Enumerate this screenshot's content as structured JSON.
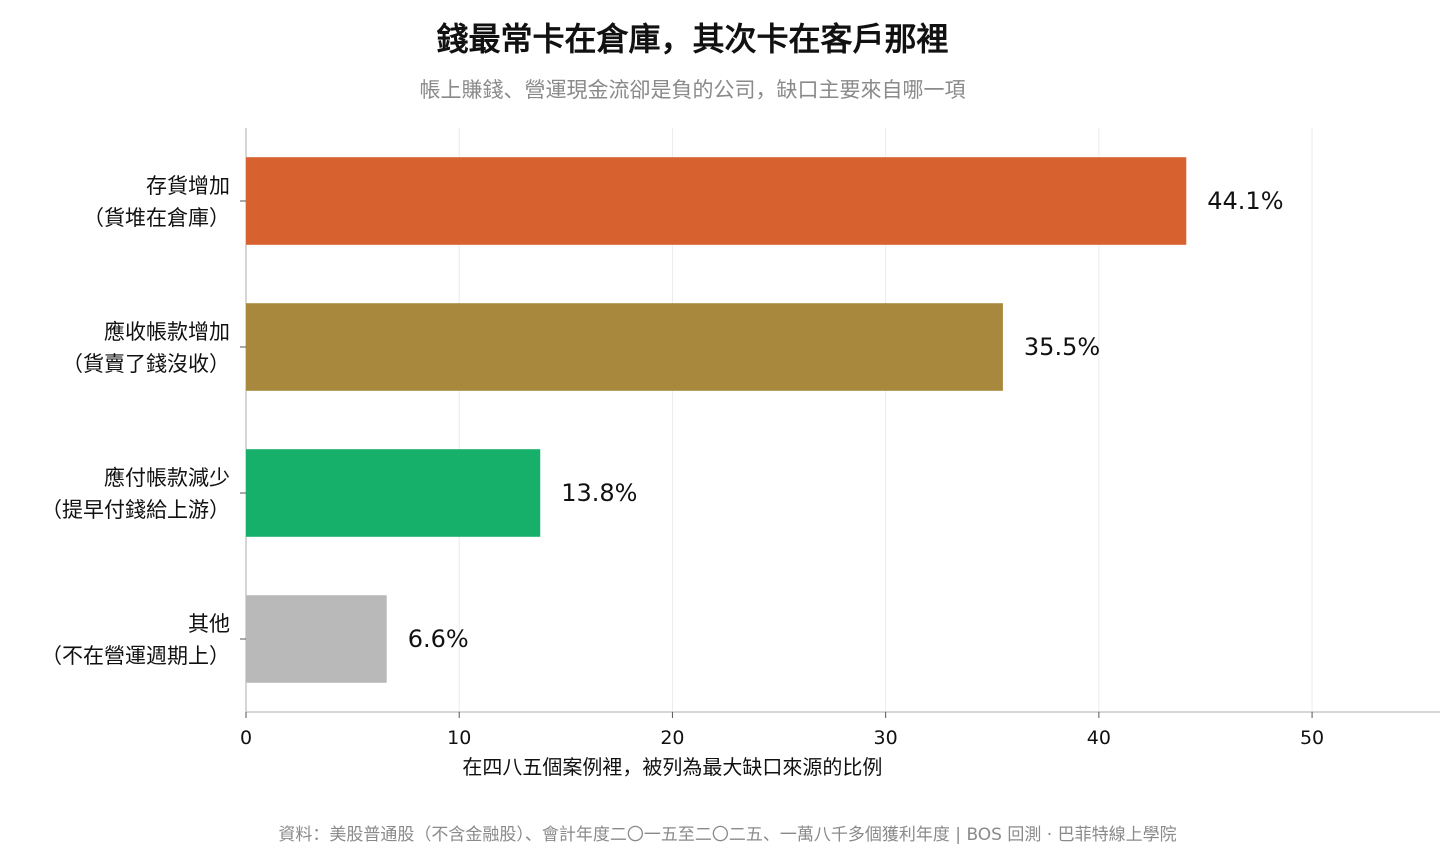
{
  "header": {
    "title": "錢最常卡在倉庫，其次卡在客戶那裡",
    "subtitle": "帳上賺錢、營運現金流卻是負的公司，缺口主要來自哪一項"
  },
  "footer": {
    "source": "資料：美股普通股（不含金融股）、會計年度二〇一五至二〇二五、一萬八千多個獲利年度 | BOS 回測 · 巴菲特線上學院"
  },
  "chart_data": {
    "type": "bar",
    "orientation": "horizontal",
    "categories": [
      [
        "存貨增加",
        "（貨堆在倉庫）"
      ],
      [
        "應收帳款增加",
        "（貨賣了錢沒收）"
      ],
      [
        "應付帳款減少",
        "（提早付錢給上游）"
      ],
      [
        "其他",
        "（不在營運週期上）"
      ]
    ],
    "values": [
      44.1,
      35.5,
      13.8,
      6.6
    ],
    "value_labels": [
      "44.1%",
      "35.5%",
      "13.8%",
      "6.6%"
    ],
    "colors": [
      "#d7612f",
      "#a8883d",
      "#16b06a",
      "#b9b9b9"
    ],
    "xlabel": "在四八五個案例裡，被列為最大缺口來源的比例",
    "ylabel": "",
    "xlim": [
      0,
      56
    ],
    "xticks": [
      0,
      10,
      20,
      30,
      40,
      50
    ],
    "grid": "vertical"
  }
}
